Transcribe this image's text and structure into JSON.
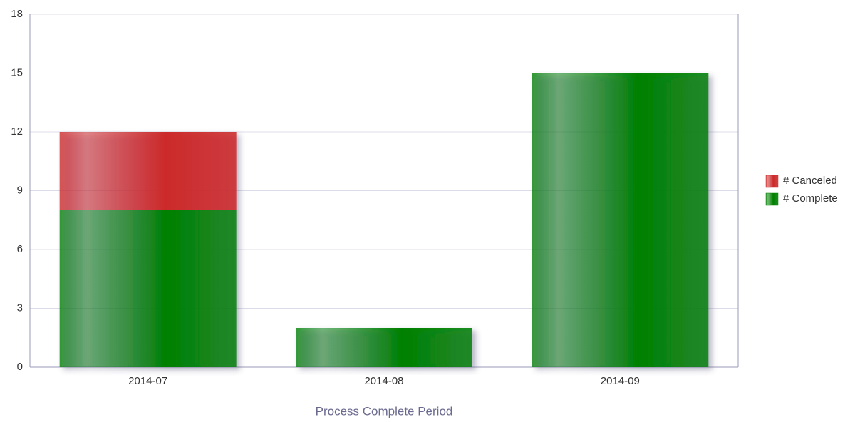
{
  "chart_data": {
    "type": "stacked-bar",
    "x_label": "Process Complete Period",
    "categories": [
      "2014-07",
      "2014-08",
      "2014-09"
    ],
    "series": [
      {
        "name": "# Complete",
        "color": "#008000",
        "values": [
          8,
          2,
          15
        ]
      },
      {
        "name": "# Canceled",
        "color": "#cc2a2a",
        "values": [
          4,
          0,
          0
        ]
      }
    ],
    "ylim": [
      0,
      18
    ],
    "yticks": [
      0,
      3,
      6,
      9,
      12,
      15,
      18
    ],
    "grid": true,
    "legend": "right"
  }
}
